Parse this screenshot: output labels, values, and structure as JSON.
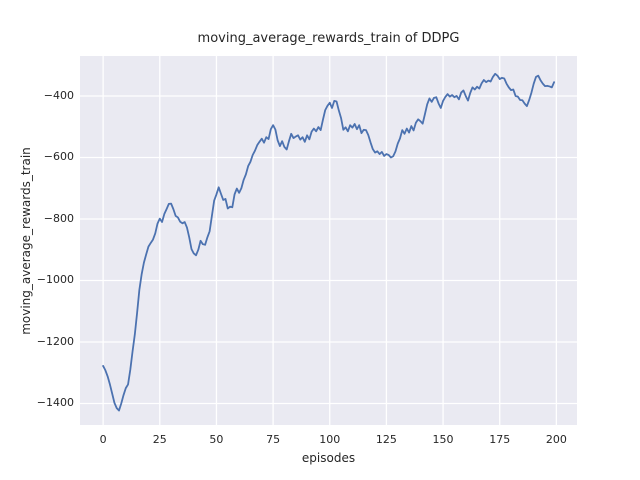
{
  "chart_data": {
    "type": "line",
    "title": "moving_average_rewards_train of DDPG",
    "xlabel": "episodes",
    "ylabel": "moving_average_rewards_train",
    "x_start": 0,
    "x_step": 1,
    "y": [
      -1278,
      -1292,
      -1312,
      -1338,
      -1368,
      -1398,
      -1415,
      -1423,
      -1400,
      -1373,
      -1350,
      -1338,
      -1290,
      -1230,
      -1175,
      -1105,
      -1030,
      -980,
      -942,
      -915,
      -890,
      -878,
      -867,
      -847,
      -815,
      -799,
      -810,
      -784,
      -768,
      -751,
      -750,
      -768,
      -790,
      -795,
      -809,
      -814,
      -810,
      -828,
      -860,
      -898,
      -912,
      -918,
      -900,
      -871,
      -882,
      -884,
      -860,
      -840,
      -790,
      -740,
      -720,
      -697,
      -718,
      -738,
      -735,
      -766,
      -760,
      -762,
      -720,
      -701,
      -715,
      -700,
      -673,
      -655,
      -628,
      -614,
      -592,
      -578,
      -560,
      -549,
      -539,
      -552,
      -534,
      -540,
      -508,
      -495,
      -509,
      -544,
      -563,
      -547,
      -566,
      -574,
      -547,
      -523,
      -537,
      -532,
      -528,
      -542,
      -534,
      -549,
      -528,
      -541,
      -516,
      -506,
      -515,
      -501,
      -511,
      -477,
      -446,
      -432,
      -422,
      -439,
      -416,
      -418,
      -447,
      -472,
      -510,
      -502,
      -515,
      -495,
      -503,
      -491,
      -508,
      -495,
      -521,
      -510,
      -511,
      -527,
      -551,
      -573,
      -584,
      -580,
      -589,
      -582,
      -595,
      -589,
      -592,
      -600,
      -596,
      -580,
      -555,
      -538,
      -511,
      -523,
      -506,
      -519,
      -498,
      -512,
      -487,
      -476,
      -482,
      -490,
      -459,
      -427,
      -408,
      -419,
      -406,
      -404,
      -424,
      -439,
      -416,
      -403,
      -394,
      -402,
      -397,
      -404,
      -400,
      -411,
      -389,
      -382,
      -400,
      -415,
      -390,
      -372,
      -379,
      -370,
      -376,
      -359,
      -348,
      -355,
      -350,
      -353,
      -338,
      -328,
      -334,
      -345,
      -341,
      -343,
      -360,
      -372,
      -381,
      -379,
      -400,
      -402,
      -413,
      -414,
      -425,
      -433,
      -413,
      -389,
      -360,
      -338,
      -334,
      -349,
      -360,
      -368,
      -367,
      -369,
      -372,
      -355
    ],
    "xticks": [
      0,
      25,
      50,
      75,
      100,
      125,
      150,
      175,
      200
    ],
    "yticks": [
      -400,
      -600,
      -800,
      -1000,
      -1200,
      -1400
    ],
    "xlim": [
      -10.2,
      209.1
    ],
    "ylim": [
      -1470,
      -270
    ],
    "grid": true,
    "legend": null,
    "style": {
      "line_color": "#4C72B0",
      "plot_bg_color": "#EAEAF2",
      "grid_color": "#FFFFFF",
      "figure_bg_color": "#FFFFFF",
      "text_color": "#262626"
    }
  }
}
